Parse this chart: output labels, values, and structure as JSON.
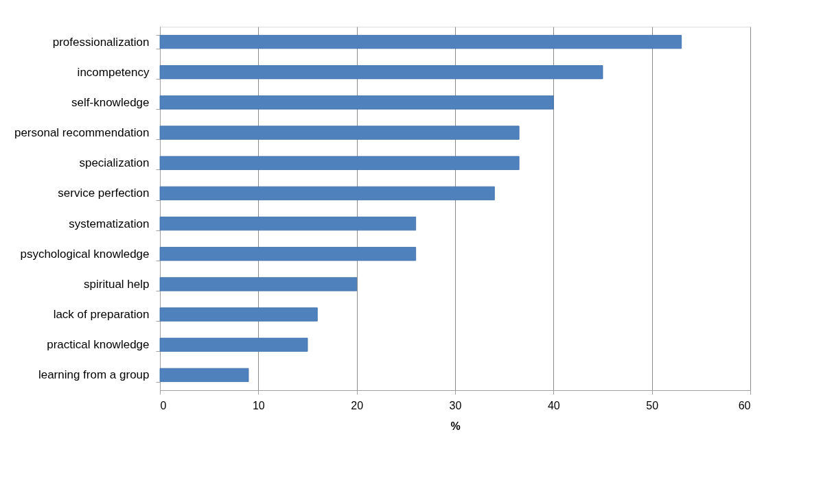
{
  "chart_data": {
    "type": "bar",
    "orientation": "horizontal",
    "xlabel": "%",
    "categories": [
      "professionalization",
      "incompetency",
      "self-knowledge",
      "personal recommendation",
      "specialization",
      "service perfection",
      "systematization",
      "psychological knowledge",
      "spiritual help",
      "lack of preparation",
      "practical knowledge",
      "learning from a group"
    ],
    "values": [
      53,
      45,
      40,
      36.5,
      36.5,
      34,
      26,
      26,
      20,
      16,
      15,
      9
    ],
    "color": "#4f81bd",
    "xlim": [
      0,
      60
    ],
    "xticks": [
      0,
      10,
      20,
      30,
      40,
      50,
      60
    ],
    "grid": "x"
  }
}
